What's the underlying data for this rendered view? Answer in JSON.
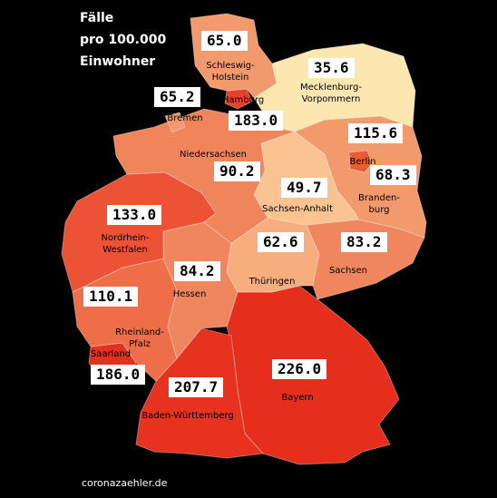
{
  "title": [
    "Fälle",
    "pro 100.000",
    "Einwohner"
  ],
  "footer": "coronazaehler.de",
  "states": [
    {
      "id": "sh",
      "name": "Schleswig-\nHolstein",
      "value": "65.0",
      "color": "#f39a6d"
    },
    {
      "id": "mv",
      "name": "Mecklenburg-\nVorpommern",
      "value": "35.6",
      "color": "#fde7b0"
    },
    {
      "id": "hb",
      "name": "Bremen",
      "value": "65.2",
      "color": "#f39a6d"
    },
    {
      "id": "hh",
      "name": "Hamburg",
      "value": "183.0",
      "color": "#e8402a"
    },
    {
      "id": "ni",
      "name": "Niedersachsen",
      "value": "90.2",
      "color": "#f0845b"
    },
    {
      "id": "be",
      "name": "Berlin",
      "value": "115.6",
      "color": "#ea5a38"
    },
    {
      "id": "bb",
      "name": "Branden-\nburg",
      "value": "68.3",
      "color": "#f39a6d"
    },
    {
      "id": "st",
      "name": "Sachsen-Anhalt",
      "value": "49.7",
      "color": "#fbc38f"
    },
    {
      "id": "nw",
      "name": "Nordrhein-\nWestfalen",
      "value": "133.0",
      "color": "#ec5235"
    },
    {
      "id": "th",
      "name": "Thüringen",
      "value": "62.6",
      "color": "#f7ad7d"
    },
    {
      "id": "sn",
      "name": "Sachsen",
      "value": "83.2",
      "color": "#f0865d"
    },
    {
      "id": "he",
      "name": "Hessen",
      "value": "84.2",
      "color": "#f0865d"
    },
    {
      "id": "rp",
      "name": "Rheinland-\nPfalz",
      "value": "110.1",
      "color": "#ee6e49"
    },
    {
      "id": "sl",
      "name": "Saarland",
      "value": "186.0",
      "color": "#e3301f"
    },
    {
      "id": "bw",
      "name": "Baden-Württemberg",
      "value": "207.7",
      "color": "#e6321f"
    },
    {
      "id": "by",
      "name": "Bayern",
      "value": "226.0",
      "color": "#e52e1c"
    }
  ]
}
